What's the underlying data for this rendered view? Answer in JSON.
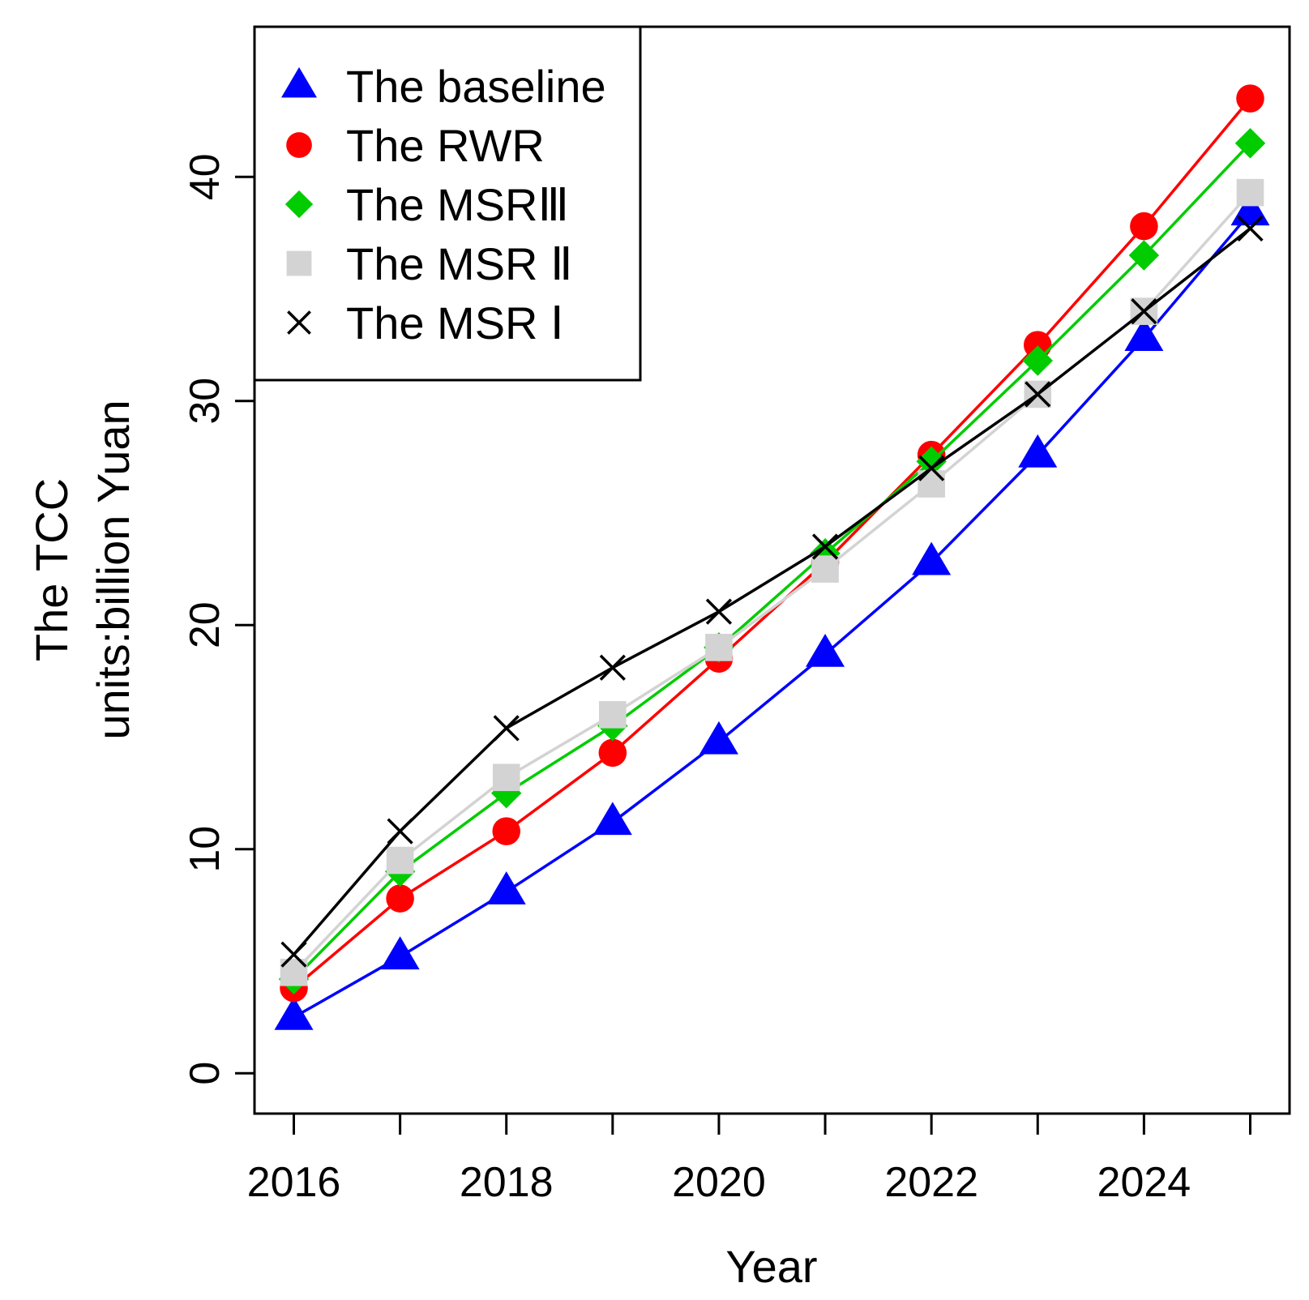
{
  "chart_data": {
    "type": "line",
    "title": "",
    "xlabel": "Year",
    "ylabel_line1": "The TCC",
    "ylabel_line2": "units:billion Yuan",
    "x": [
      2016,
      2017,
      2018,
      2019,
      2020,
      2021,
      2022,
      2023,
      2024,
      2025
    ],
    "x_tick_labels": [
      "2016",
      "2018",
      "2020",
      "2022",
      "2024"
    ],
    "x_tick_positions": [
      2016,
      2017,
      2018,
      2019,
      2020,
      2021,
      2022,
      2023,
      2024,
      2025
    ],
    "y_ticks": [
      0,
      10,
      20,
      30,
      40
    ],
    "y_tick_labels": [
      "0",
      "10",
      "20",
      "30",
      "40"
    ],
    "xlim": [
      2015.63,
      2025.37
    ],
    "ylim": [
      -1.8,
      46.7
    ],
    "legend_position": "top-left",
    "series": [
      {
        "name": "The baseline",
        "color": "#0000ff",
        "marker": "triangle",
        "values": [
          2.5,
          5.2,
          8.1,
          11.2,
          14.8,
          18.7,
          22.8,
          27.6,
          32.8,
          38.4
        ]
      },
      {
        "name": "The RWR",
        "color": "#ff0000",
        "marker": "circle",
        "values": [
          3.8,
          7.8,
          10.8,
          14.3,
          18.5,
          22.8,
          27.6,
          32.5,
          37.8,
          43.5
        ]
      },
      {
        "name": "The MSRⅢ",
        "color": "#00cc00",
        "marker": "diamond",
        "values": [
          4.2,
          9.0,
          12.5,
          15.5,
          19.0,
          23.2,
          27.3,
          31.8,
          36.5,
          41.5
        ]
      },
      {
        "name": "The MSR Ⅱ",
        "color": "#d3d3d3",
        "marker": "square",
        "values": [
          4.5,
          9.5,
          13.2,
          16.0,
          19.0,
          22.5,
          26.3,
          30.3,
          34.0,
          39.3
        ]
      },
      {
        "name": "The MSR Ⅰ",
        "color": "#000000",
        "marker": "x",
        "values": [
          5.3,
          10.8,
          15.4,
          18.1,
          20.6,
          23.5,
          27.0,
          30.3,
          34.0,
          37.7
        ]
      }
    ]
  }
}
